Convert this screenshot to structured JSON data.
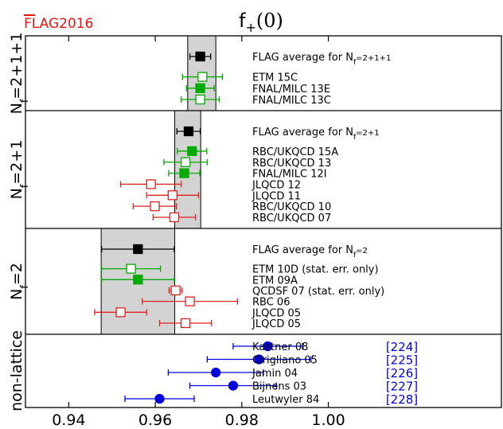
{
  "logo": {
    "text": "FLAG2016",
    "color": "#ee1111"
  },
  "chart_data": {
    "type": "scatter",
    "title": "f+(0)",
    "title_main": "f",
    "title_sub": "+",
    "title_tail": "(0)",
    "xlim": [
      0.93,
      1.04
    ],
    "xticks": [
      0.94,
      0.96,
      0.98,
      1.0
    ],
    "xtick_labels": [
      "0.94",
      "0.96",
      "0.98",
      "1.00"
    ],
    "colors": {
      "black": "#000000",
      "green": "#00aa00",
      "red": "#dd2222",
      "blue": "#0000dd",
      "band": "#d3d3d3",
      "ref": "#0000dd"
    },
    "groups": [
      {
        "label": "N_f=2+1+1",
        "label_main": "N",
        "label_sub": "f",
        "label_tail": "=2+1+1",
        "band": [
          0.9675,
          0.974
        ],
        "entries": [
          {
            "label": "FLAG average for N_f=2+1+1",
            "label_main": "FLAG average for N",
            "label_sub": "f",
            "label_tail": "=2+1+1",
            "value": 0.9704,
            "err": 0.0024,
            "marker": "square",
            "filled": true,
            "color": "black"
          },
          {
            "label": "ETM 15C",
            "value": 0.9709,
            "err": 0.0046,
            "marker": "square",
            "filled": false,
            "color": "green"
          },
          {
            "label": "FNAL/MILC 13E",
            "value": 0.9704,
            "err": 0.0032,
            "marker": "square",
            "filled": true,
            "color": "green"
          },
          {
            "label": "FNAL/MILC 13C",
            "value": 0.9704,
            "err": 0.0044,
            "marker": "square",
            "filled": false,
            "color": "green"
          }
        ]
      },
      {
        "label": "N_f=2+1",
        "label_main": "N",
        "label_sub": "f",
        "label_tail": "=2+1",
        "band": [
          0.9645,
          0.9705
        ],
        "entries": [
          {
            "label": "FLAG average for N_f=2+1",
            "label_main": "FLAG average for N",
            "label_sub": "f",
            "label_tail": "=2+1",
            "value": 0.9677,
            "err": 0.0027,
            "marker": "square",
            "filled": true,
            "color": "black"
          },
          {
            "label": "RBC/UKQCD 15A",
            "value": 0.9685,
            "err": 0.0034,
            "marker": "square",
            "filled": true,
            "color": "green"
          },
          {
            "label": "RBC/UKQCD 13",
            "value": 0.967,
            "err": 0.005,
            "marker": "square",
            "filled": false,
            "color": "green"
          },
          {
            "label": "FNAL/MILC 12I",
            "value": 0.9667,
            "err": 0.0036,
            "marker": "square",
            "filled": true,
            "color": "green"
          },
          {
            "label": "JLQCD 12",
            "value": 0.959,
            "err": 0.007,
            "marker": "square",
            "filled": false,
            "color": "red"
          },
          {
            "label": "JLQCD 11",
            "value": 0.964,
            "err": 0.006,
            "marker": "square",
            "filled": false,
            "color": "red"
          },
          {
            "label": "RBC/UKQCD 10",
            "value": 0.9599,
            "err": 0.005,
            "marker": "square",
            "filled": false,
            "color": "red"
          },
          {
            "label": "RBC/UKQCD 07",
            "value": 0.9644,
            "err": 0.0049,
            "marker": "square",
            "filled": false,
            "color": "red"
          }
        ]
      },
      {
        "label": "N_f=2",
        "label_main": "N",
        "label_sub": "f",
        "label_tail": "=2",
        "band": [
          0.9475,
          0.9645
        ],
        "entries": [
          {
            "label": "FLAG average for N_f=2",
            "label_main": "FLAG average for N",
            "label_sub": "f",
            "label_tail": "=2",
            "value": 0.956,
            "err": 0.0084,
            "marker": "square",
            "filled": true,
            "color": "black"
          },
          {
            "label": "ETM 10D (stat. err. only)",
            "value": 0.9544,
            "err": 0.0068,
            "marker": "square",
            "filled": false,
            "color": "green"
          },
          {
            "label": "ETM 09A",
            "value": 0.956,
            "err": 0.0084,
            "marker": "square",
            "filled": true,
            "color": "green"
          },
          {
            "label": "QCDSF 07 (stat. err. only)",
            "value": 0.9647,
            "err": 0.0015,
            "marker": "square",
            "filled": false,
            "color": "red"
          },
          {
            "label": "RBC 06",
            "value": 0.968,
            "err": 0.011,
            "marker": "square",
            "filled": false,
            "color": "red"
          },
          {
            "label": "JLQCD 05",
            "value": 0.952,
            "err": 0.006,
            "marker": "square",
            "filled": false,
            "color": "red"
          },
          {
            "label": "JLQCD 05",
            "value": 0.967,
            "err": 0.006,
            "marker": "square",
            "filled": false,
            "color": "red"
          }
        ]
      },
      {
        "label": "non-lattice",
        "band": null,
        "entries": [
          {
            "label": "Kastner 08",
            "value": 0.986,
            "err": 0.008,
            "marker": "circle",
            "filled": true,
            "color": "blue",
            "ref": "[224]"
          },
          {
            "label": "Cirigliano 05",
            "value": 0.984,
            "err": 0.012,
            "marker": "circle",
            "filled": true,
            "color": "blue",
            "ref": "[225]"
          },
          {
            "label": "Jamin 04",
            "value": 0.974,
            "err": 0.011,
            "marker": "circle",
            "filled": true,
            "color": "blue",
            "ref": "[226]"
          },
          {
            "label": "Bijnens 03",
            "value": 0.978,
            "err": 0.01,
            "marker": "circle",
            "filled": true,
            "color": "blue",
            "ref": "[227]"
          },
          {
            "label": "Leutwyler 84",
            "value": 0.961,
            "err": 0.008,
            "marker": "circle",
            "filled": true,
            "color": "blue",
            "ref": "[228]"
          }
        ]
      }
    ]
  }
}
